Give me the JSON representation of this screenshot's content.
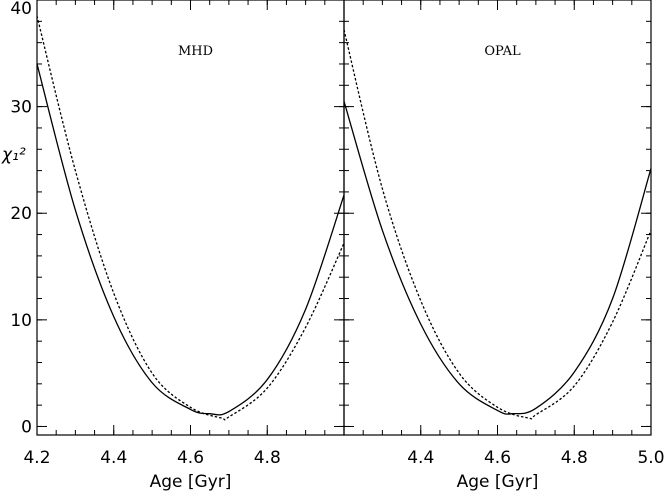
{
  "chart_data": [
    {
      "type": "line",
      "panel_label": "MHD",
      "xlabel": "Age [Gyr]",
      "ylabel": "χ₁²",
      "xlim": [
        4.2,
        5.0
      ],
      "ylim": [
        -0.8,
        40
      ],
      "x_ticks": [
        4.2,
        4.4,
        4.6,
        4.8
      ],
      "x_tick_labels": [
        "4.2",
        "4.4",
        "4.6",
        "4.8"
      ],
      "y_ticks": [
        0,
        10,
        20,
        30,
        40
      ],
      "y_tick_labels": [
        "0",
        "10",
        "20",
        "30",
        "40"
      ],
      "series": [
        {
          "style": "solid",
          "x": [
            4.2,
            4.3,
            4.4,
            4.5,
            4.6,
            4.65,
            4.7,
            4.8,
            4.9,
            5.0
          ],
          "y": [
            34.0,
            20.3,
            10.3,
            4.1,
            1.6,
            1.2,
            1.4,
            4.4,
            11.0,
            21.7
          ]
        },
        {
          "style": "dotted",
          "x": [
            4.2,
            4.3,
            4.4,
            4.5,
            4.6,
            4.68,
            4.7,
            4.8,
            4.9,
            5.0
          ],
          "y": [
            38.5,
            24.0,
            12.5,
            5.0,
            1.8,
            0.8,
            0.9,
            3.6,
            9.3,
            17.2
          ]
        }
      ]
    },
    {
      "type": "line",
      "panel_label": "OPAL",
      "xlabel": "Age [Gyr]",
      "ylabel": "",
      "xlim": [
        4.2,
        5.0
      ],
      "ylim": [
        -0.8,
        40
      ],
      "x_ticks": [
        4.4,
        4.6,
        4.8,
        5.0
      ],
      "x_tick_labels": [
        "4.4",
        "4.6",
        "4.8",
        "5.0"
      ],
      "y_ticks": [
        0,
        10,
        20,
        30,
        40
      ],
      "y_tick_labels": [],
      "series": [
        {
          "style": "solid",
          "x": [
            4.2,
            4.3,
            4.4,
            4.5,
            4.6,
            4.64,
            4.7,
            4.8,
            4.9,
            5.0
          ],
          "y": [
            30.5,
            18.4,
            9.6,
            4.0,
            1.5,
            1.2,
            1.7,
            5.1,
            12.0,
            24.2
          ]
        },
        {
          "style": "dotted",
          "x": [
            4.2,
            4.3,
            4.4,
            4.5,
            4.6,
            4.68,
            4.7,
            4.8,
            4.9,
            5.0
          ],
          "y": [
            37.2,
            22.3,
            11.8,
            5.0,
            1.8,
            0.8,
            1.1,
            3.8,
            9.8,
            18.4
          ]
        }
      ]
    }
  ]
}
